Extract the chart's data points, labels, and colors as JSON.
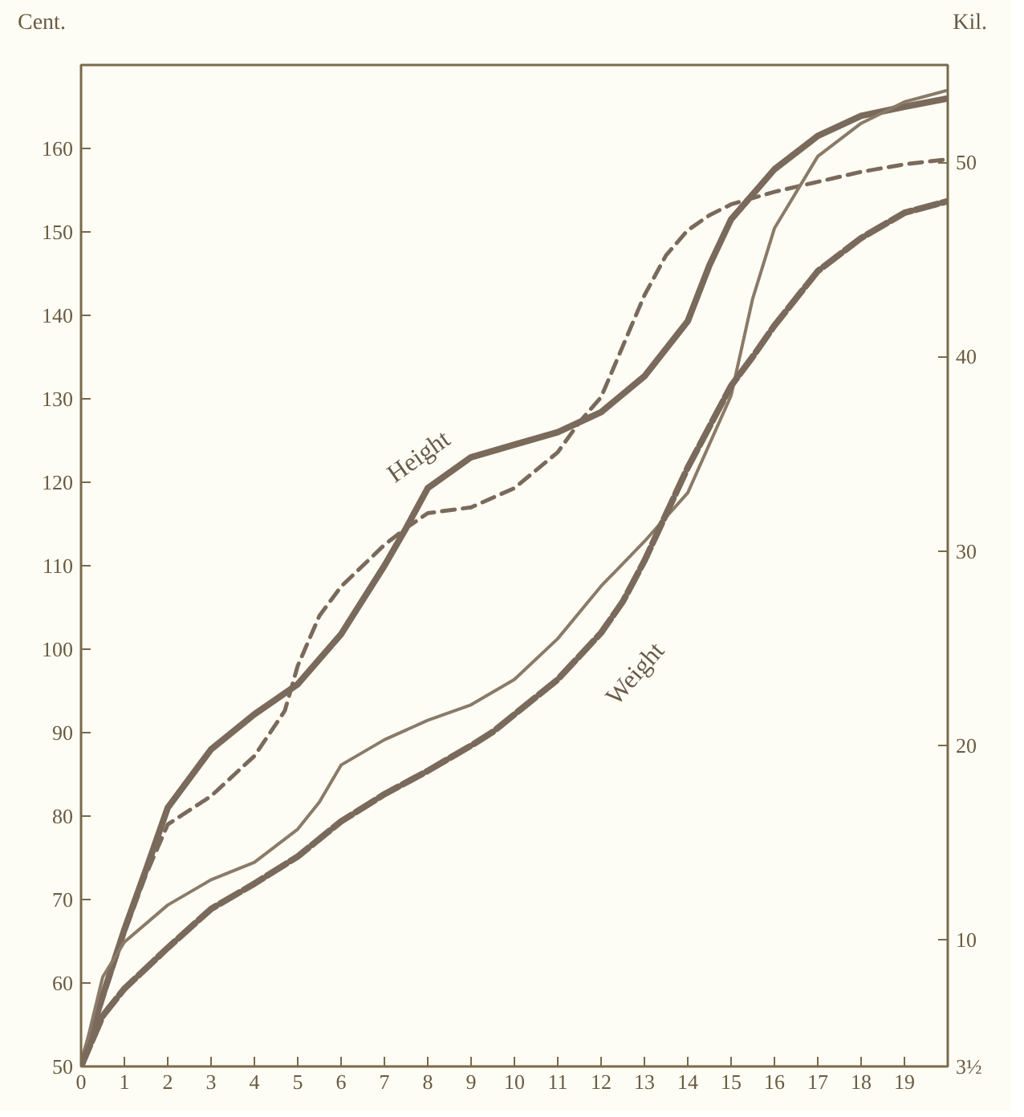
{
  "chart_data": {
    "type": "line",
    "ylabel": "Cent.",
    "y2label": "Kil.",
    "xlim": [
      0,
      20
    ],
    "xticks": [
      0,
      1,
      2,
      3,
      4,
      5,
      6,
      7,
      8,
      9,
      10,
      11,
      12,
      13,
      14,
      15,
      16,
      17,
      18,
      19
    ],
    "ylim": [
      50,
      170
    ],
    "yticks": [
      50,
      60,
      70,
      80,
      90,
      100,
      110,
      120,
      130,
      140,
      150,
      160
    ],
    "y2lim": [
      3.5,
      55
    ],
    "y2ticks": [
      {
        "value": 3.5,
        "label": "3½"
      },
      10,
      20,
      30,
      40,
      50
    ],
    "grid": false,
    "marker": "none",
    "annotations": [
      "Height",
      "Weight"
    ],
    "series": [
      {
        "color": "#7a6a5c",
        "line_style": "solid",
        "x": [
          0,
          0.5,
          1,
          1.5,
          2,
          3,
          4,
          5,
          6,
          7,
          7.5,
          8,
          9,
          10,
          11,
          12,
          13,
          14,
          14.5,
          15,
          16,
          17,
          18,
          19,
          20
        ],
        "values": [
          50,
          58.5,
          66.4,
          73.6,
          81,
          88,
          92.2,
          95.8,
          101.8,
          110,
          114.5,
          119.3,
          123,
          124.5,
          126,
          128.4,
          132.7,
          139.3,
          146,
          151.5,
          157.5,
          161.5,
          163.9,
          165,
          166
        ]
      },
      {
        "color": "#7a6a5c",
        "line_style": "dashed",
        "x": [
          0,
          0.5,
          1,
          1.5,
          2,
          3,
          4,
          4.7,
          5,
          5.5,
          6,
          6.5,
          7,
          7.5,
          8,
          9,
          10,
          11,
          11.5,
          12,
          12.5,
          13,
          13.5,
          14,
          14.5,
          15,
          16,
          17,
          18,
          19,
          20
        ],
        "values": [
          50,
          58,
          66,
          73,
          79,
          82.4,
          87.2,
          92.6,
          98,
          104,
          107.5,
          110,
          112.5,
          114.5,
          116.3,
          117,
          119.3,
          123.6,
          127.2,
          130.2,
          136.3,
          142.4,
          147.2,
          150.2,
          152,
          153.3,
          154.8,
          156,
          157.2,
          158.1,
          158.7
        ]
      },
      {
        "color": "#8a7a68",
        "line_style": "solid",
        "axis": "y2",
        "x": [
          0,
          0.5,
          1,
          2,
          3,
          4,
          5,
          5.5,
          6,
          7,
          8,
          9,
          10,
          11,
          12,
          13,
          14,
          15,
          15.5,
          16,
          17,
          18,
          19,
          20
        ],
        "values": [
          3.5,
          8.1,
          9.9,
          11.8,
          13.1,
          14.0,
          15.7,
          17.1,
          19,
          20.3,
          21.3,
          22.1,
          23.4,
          25.5,
          28.2,
          30.5,
          33,
          38,
          43,
          46.6,
          50.3,
          52,
          53.1,
          53.7
        ]
      },
      {
        "color": "#7a6a5c",
        "line_style": "dashed",
        "axis": "y2",
        "x": [
          0,
          0.5,
          1,
          2,
          3,
          4,
          5,
          6,
          7,
          8,
          9,
          9.5,
          10,
          11,
          12,
          12.5,
          13,
          14,
          15,
          15.5,
          16,
          17,
          18,
          19,
          20
        ],
        "values": [
          3.5,
          6.1,
          7.5,
          9.6,
          11.6,
          12.9,
          14.3,
          16.1,
          17.5,
          18.7,
          20,
          20.7,
          21.6,
          23.4,
          25.8,
          27.4,
          29.5,
          34.3,
          38.5,
          40,
          41.6,
          44.4,
          46.1,
          47.4,
          48
        ]
      }
    ]
  }
}
